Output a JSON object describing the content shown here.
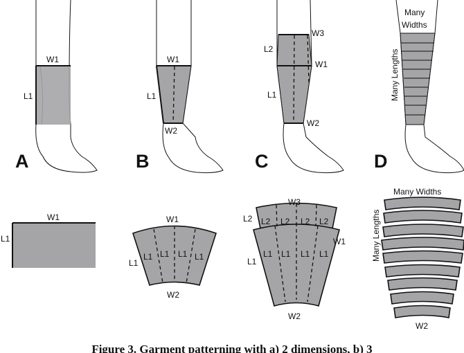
{
  "panels": {
    "A": {
      "letter": "A",
      "w1": "W1",
      "l1": "L1"
    },
    "B": {
      "letter": "B",
      "w1": "W1",
      "l1": "L1",
      "w2": "W2"
    },
    "C": {
      "letter": "C",
      "w1": "W1",
      "l1": "L1",
      "w2": "W2",
      "w3": "W3",
      "l2": "L2"
    },
    "D": {
      "letter": "D",
      "widths": [
        "Many",
        "Widths"
      ],
      "lengths": "Many Lengths"
    }
  },
  "patterns": {
    "A": {
      "w1": "W1",
      "l1": "L1"
    },
    "B": {
      "w1": "W1",
      "l1": "L1",
      "w2": "W2",
      "inner": [
        "L1",
        "L1",
        "L1",
        "L1"
      ]
    },
    "C": {
      "w3": "W3",
      "l2": "L2",
      "inner_top": [
        "L2",
        "L2",
        "L2",
        "L2"
      ],
      "w1": "W1",
      "l1": "L1",
      "inner_bottom": [
        "L1",
        "L1",
        "L1",
        "L1"
      ],
      "w2": "W2"
    },
    "D": {
      "widths": "Many Widths",
      "lengths": "Many Lengths",
      "w2": "W2"
    }
  },
  "caption": "Figure 3. Garment patterning with a) 2 dimensions, b) 3"
}
